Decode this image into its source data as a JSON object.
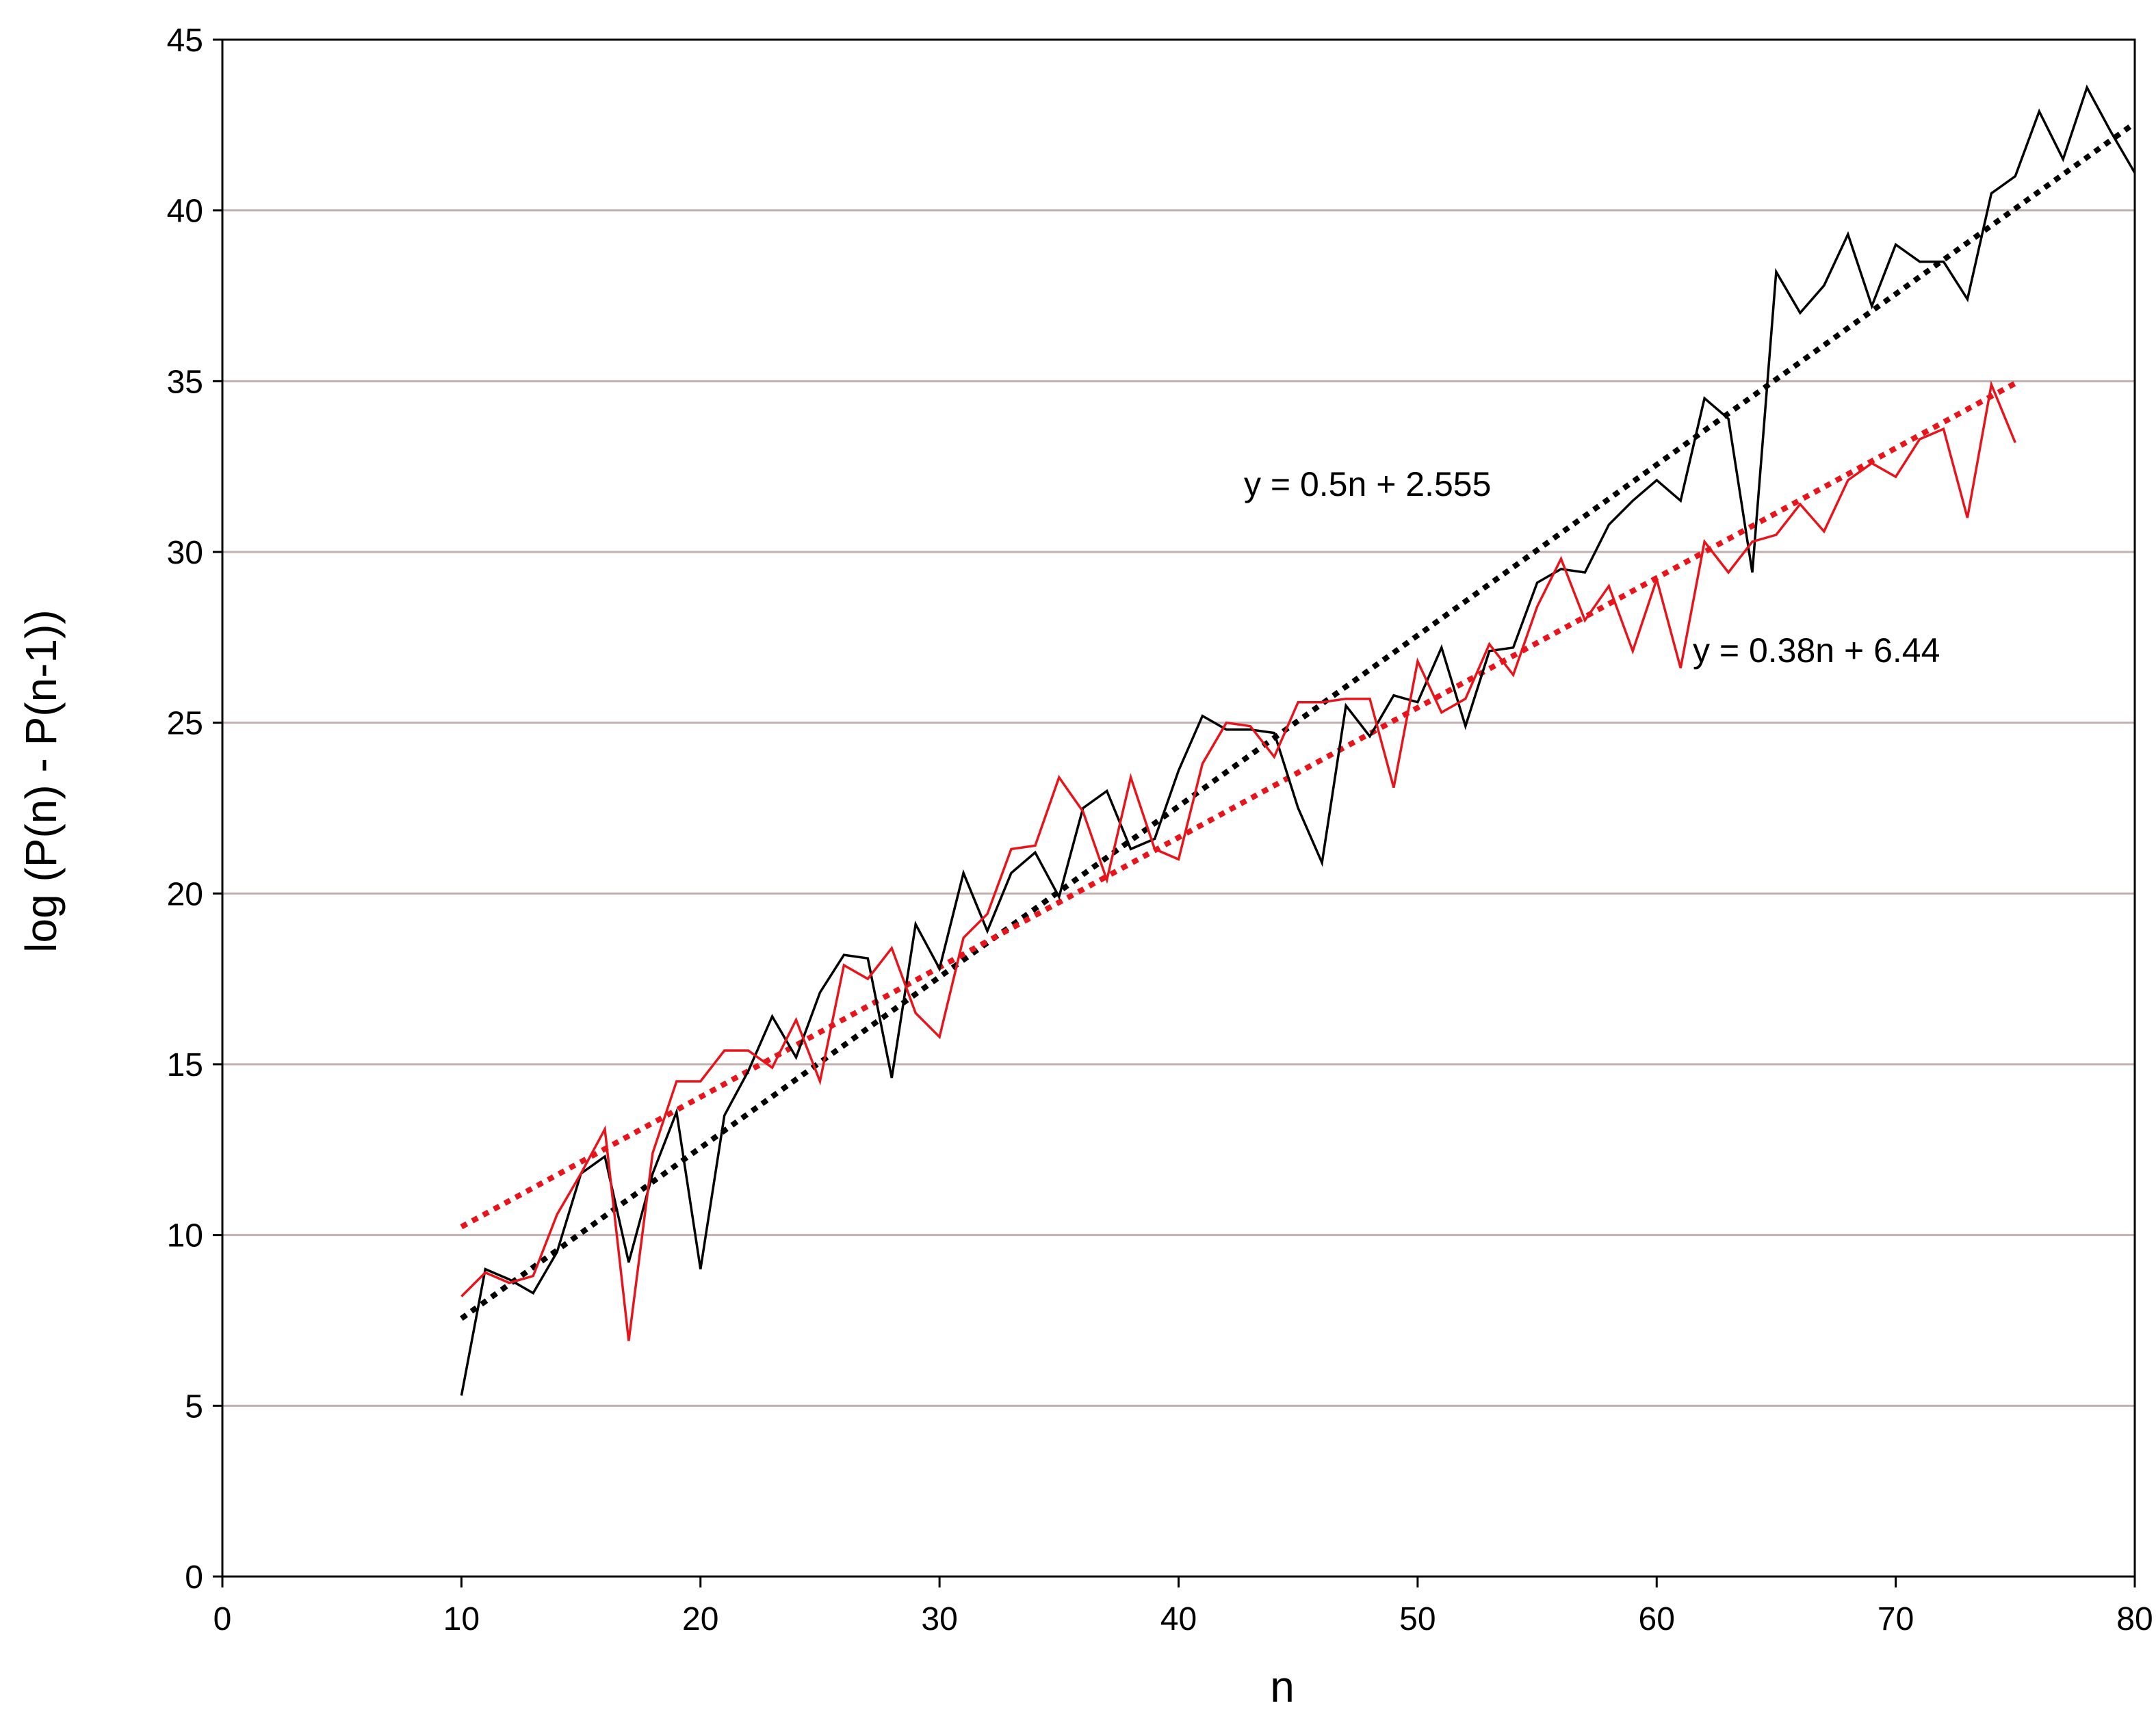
{
  "chart_data": {
    "type": "line",
    "xlabel": "n",
    "ylabel": "log (P(n) - P(n-1))",
    "xlim": [
      0,
      80
    ],
    "ylim": [
      0,
      45
    ],
    "xticks": [
      "0",
      "10",
      "20",
      "30",
      "40",
      "50",
      "60",
      "70",
      "80"
    ],
    "yticks": [
      "0",
      "5",
      "10",
      "15",
      "20",
      "25",
      "30",
      "35",
      "40",
      "45"
    ],
    "grid": "horizontal",
    "colors": {
      "black": "#000000",
      "red": "#e8141c",
      "grid": "#c0b0b0"
    },
    "series": [
      {
        "color": "black",
        "x": [
          10,
          11,
          12,
          13,
          14,
          15,
          16,
          17,
          18,
          19,
          20,
          21,
          22,
          23,
          24,
          25,
          26,
          27,
          28,
          29,
          30,
          31,
          32,
          33,
          34,
          35,
          36,
          37,
          38,
          39,
          40,
          41,
          42,
          43,
          44,
          45,
          46,
          47,
          48,
          49,
          50,
          51,
          52,
          53,
          54,
          55,
          56,
          57,
          58,
          59,
          60,
          61,
          62,
          63,
          64,
          65,
          66,
          67,
          68,
          69,
          70,
          71,
          72,
          73,
          74,
          75,
          76,
          77,
          78,
          79,
          80
        ],
        "values": [
          5.3,
          9.0,
          8.7,
          8.3,
          9.5,
          11.8,
          12.3,
          9.2,
          11.8,
          13.6,
          9.0,
          13.5,
          14.8,
          16.4,
          15.2,
          17.1,
          18.2,
          18.1,
          14.6,
          19.1,
          17.8,
          20.6,
          18.9,
          20.6,
          21.2,
          19.9,
          22.5,
          23.0,
          21.3,
          21.6,
          23.6,
          25.2,
          24.8,
          24.8,
          24.7,
          22.5,
          20.9,
          25.5,
          24.6,
          25.8,
          25.6,
          27.2,
          24.9,
          27.1,
          27.2,
          29.1,
          29.5,
          29.4,
          30.8,
          31.5,
          32.1,
          31.5,
          34.5,
          33.9,
          29.4,
          38.2,
          37.0,
          37.8,
          39.3,
          37.2,
          39.0,
          38.5,
          38.5,
          37.4,
          40.5,
          41.0,
          42.9,
          41.5,
          43.6,
          42.3,
          41.1
        ]
      },
      {
        "color": "red",
        "x": [
          10,
          11,
          12,
          13,
          14,
          15,
          16,
          17,
          18,
          19,
          20,
          21,
          22,
          23,
          24,
          25,
          26,
          27,
          28,
          29,
          30,
          31,
          32,
          33,
          34,
          35,
          36,
          37,
          38,
          39,
          40,
          41,
          42,
          43,
          44,
          45,
          46,
          47,
          48,
          49,
          50,
          51,
          52,
          53,
          54,
          55,
          56,
          57,
          58,
          59,
          60,
          61,
          62,
          63,
          64,
          65,
          66,
          67,
          68,
          69,
          70,
          71,
          72,
          73,
          74,
          75
        ],
        "values": [
          8.2,
          8.9,
          8.6,
          8.8,
          10.6,
          11.8,
          13.1,
          6.9,
          12.4,
          14.5,
          14.5,
          15.4,
          15.4,
          14.9,
          16.3,
          14.5,
          17.9,
          17.5,
          18.4,
          16.5,
          15.8,
          18.7,
          19.4,
          21.3,
          21.4,
          23.4,
          22.4,
          20.4,
          23.4,
          21.3,
          21.0,
          23.8,
          25.0,
          24.9,
          24.0,
          25.6,
          25.6,
          25.7,
          25.7,
          23.1,
          26.8,
          25.3,
          25.7,
          27.3,
          26.4,
          28.4,
          29.8,
          28.0,
          29.0,
          27.1,
          29.2,
          26.6,
          30.3,
          29.4,
          30.3,
          30.5,
          31.4,
          30.6,
          32.1,
          32.6,
          32.2,
          33.3,
          33.6,
          31.0,
          34.9,
          33.2
        ]
      }
    ],
    "trendlines": [
      {
        "color": "black",
        "equation": "y = 0.5n + 2.555",
        "slope": 0.5,
        "intercept": 2.555,
        "x_range": [
          10,
          80
        ]
      },
      {
        "color": "red",
        "equation": "y = 0.38n + 6.44",
        "slope": 0.38,
        "intercept": 6.44,
        "x_range": [
          10,
          75
        ]
      }
    ]
  }
}
